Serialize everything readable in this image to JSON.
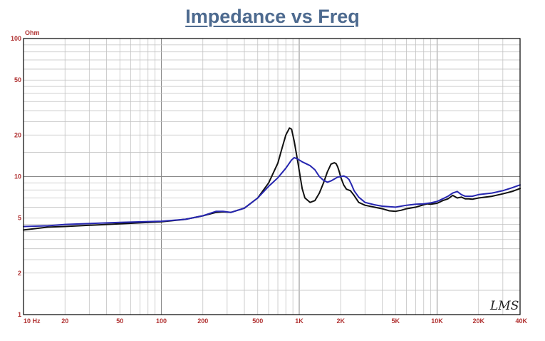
{
  "chart_data": {
    "type": "line",
    "title": "Impedance vs Freq",
    "ylabel": "Ohm",
    "xlabel": "",
    "xscale": "log",
    "yscale": "log",
    "xlim": [
      10,
      40000
    ],
    "ylim": [
      1,
      100
    ],
    "grid": true,
    "legend": "none",
    "watermark": "LMS",
    "x_ticks": [
      {
        "value": 10,
        "label": "10  Hz"
      },
      {
        "value": 20,
        "label": "20"
      },
      {
        "value": 50,
        "label": "50"
      },
      {
        "value": 100,
        "label": "100"
      },
      {
        "value": 200,
        "label": "200"
      },
      {
        "value": 500,
        "label": "500"
      },
      {
        "value": 1000,
        "label": "1K"
      },
      {
        "value": 2000,
        "label": "2K"
      },
      {
        "value": 5000,
        "label": "5K"
      },
      {
        "value": 10000,
        "label": "10K"
      },
      {
        "value": 20000,
        "label": "20K"
      },
      {
        "value": 40000,
        "label": "40K"
      }
    ],
    "y_ticks": [
      {
        "value": 100,
        "label": "100"
      },
      {
        "value": 50,
        "label": "50"
      },
      {
        "value": 20,
        "label": "20"
      },
      {
        "value": 10,
        "label": "10"
      },
      {
        "value": 5,
        "label": "5"
      },
      {
        "value": 2,
        "label": "2"
      },
      {
        "value": 1,
        "label": "1"
      }
    ],
    "series": [
      {
        "color": "#111111",
        "x": [
          10,
          15,
          20,
          50,
          100,
          150,
          200,
          250,
          280,
          320,
          400,
          500,
          600,
          700,
          750,
          800,
          850,
          880,
          920,
          980,
          1050,
          1100,
          1200,
          1300,
          1400,
          1500,
          1600,
          1700,
          1800,
          1850,
          1900,
          1950,
          2000,
          2100,
          2200,
          2350,
          2500,
          2700,
          3000,
          3500,
          4000,
          4500,
          5000,
          5500,
          6000,
          7000,
          8000,
          8500,
          9000,
          10000,
          11000,
          12000,
          13000,
          14000,
          15000,
          16000,
          17000,
          18000,
          20000,
          25000,
          30000,
          35000,
          40000
        ],
        "y": [
          4.1,
          4.3,
          4.35,
          4.55,
          4.7,
          4.9,
          5.2,
          5.5,
          5.55,
          5.5,
          5.9,
          7.0,
          9.0,
          12.5,
          16.0,
          20.0,
          22.5,
          22.0,
          18.0,
          12.5,
          8.2,
          7.0,
          6.5,
          6.7,
          7.6,
          9.0,
          10.8,
          12.3,
          12.6,
          12.4,
          11.8,
          10.9,
          9.9,
          8.7,
          8.1,
          7.9,
          7.3,
          6.5,
          6.2,
          6.0,
          5.85,
          5.65,
          5.6,
          5.7,
          5.85,
          6.0,
          6.25,
          6.35,
          6.3,
          6.4,
          6.7,
          6.9,
          7.3,
          7.0,
          7.1,
          6.9,
          6.9,
          6.85,
          7.0,
          7.2,
          7.5,
          7.8,
          8.2
        ]
      },
      {
        "color": "#2626b0",
        "x": [
          10,
          15,
          20,
          50,
          100,
          150,
          200,
          250,
          280,
          320,
          400,
          500,
          600,
          700,
          800,
          880,
          920,
          960,
          1000,
          1050,
          1100,
          1200,
          1300,
          1400,
          1500,
          1600,
          1700,
          1800,
          1900,
          2000,
          2100,
          2200,
          2300,
          2400,
          2500,
          2700,
          3000,
          3500,
          4000,
          4500,
          5000,
          6000,
          7000,
          8000,
          8500,
          9000,
          10000,
          11000,
          12000,
          13000,
          14000,
          15000,
          16000,
          18000,
          20000,
          25000,
          30000,
          35000,
          40000
        ],
        "y": [
          4.35,
          4.4,
          4.5,
          4.65,
          4.75,
          4.9,
          5.2,
          5.6,
          5.6,
          5.5,
          5.9,
          7.0,
          8.5,
          9.8,
          11.5,
          13.2,
          13.7,
          13.5,
          13.2,
          12.8,
          12.5,
          12.0,
          11.2,
          10.0,
          9.4,
          9.1,
          9.3,
          9.6,
          9.9,
          10.0,
          10.1,
          9.9,
          9.5,
          8.7,
          7.9,
          7.1,
          6.5,
          6.25,
          6.1,
          6.05,
          6.0,
          6.2,
          6.3,
          6.35,
          6.4,
          6.45,
          6.6,
          6.9,
          7.2,
          7.6,
          7.8,
          7.4,
          7.2,
          7.2,
          7.4,
          7.6,
          7.9,
          8.3,
          8.7
        ]
      }
    ]
  }
}
